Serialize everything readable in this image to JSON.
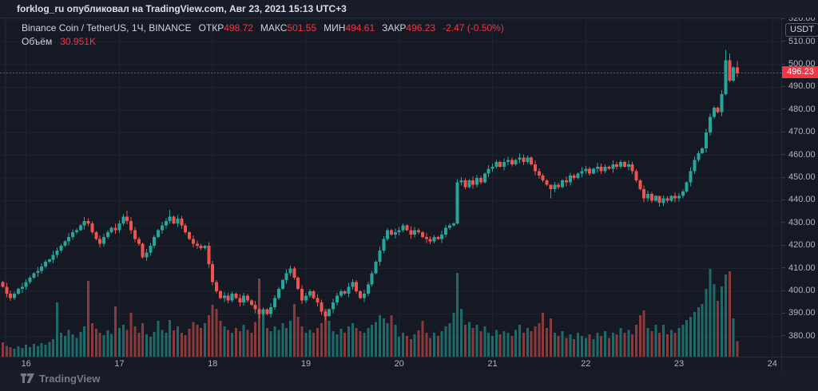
{
  "topbar": {
    "text": "forklog_ru опубликовал на TradingView.com, Авг 23, 2021 15:13 UTC+3"
  },
  "legend": {
    "symbol": "Binance Coin / TetherUS, 1Ч, BINANCE",
    "open_label": "ОТКР",
    "open": "498.72",
    "high_label": "МАКС",
    "high": "501.55",
    "low_label": "МИН",
    "low": "494.61",
    "close_label": "ЗАКР",
    "close": "496.23",
    "change": "-2.47 (-0.50%)",
    "volume_label": "Объём",
    "volume": "30.951K"
  },
  "axes": {
    "unit": "USDT",
    "last_price": "496.23",
    "price_ticks": [
      "520.00",
      "510.00",
      "500.00",
      "490.00",
      "480.00",
      "470.00",
      "460.00",
      "450.00",
      "440.00",
      "430.00",
      "420.00",
      "410.00",
      "400.00",
      "390.00",
      "380.00"
    ],
    "time_ticks": [
      "16",
      "17",
      "18",
      "19",
      "20",
      "21",
      "22",
      "23",
      "24"
    ]
  },
  "footer": {
    "brand": "TradingView"
  },
  "colors": {
    "up": "#26a69a",
    "down": "#ef5350",
    "accent_red": "#f23645",
    "grid": "#1e2330",
    "border": "#262b38",
    "axis_text": "#b2b5be",
    "pane_bg": "#151924"
  },
  "chart_data": {
    "type": "candlestick_with_volume",
    "title": "Binance Coin / TetherUS",
    "interval": "1Ч",
    "exchange": "BINANCE",
    "timezone": "UTC+3",
    "start_time": "Авг 15 2021 18:00",
    "step_hours": 1,
    "x_axis_day_labels": [
      "16",
      "17",
      "18",
      "19",
      "20",
      "21",
      "22",
      "23",
      "24"
    ],
    "y_axis": {
      "unit": "USDT",
      "visible_min": 375,
      "visible_max": 522,
      "tick_step": 10
    },
    "last_candle_ohlc": {
      "open": 498.72,
      "high": 501.55,
      "low": 494.61,
      "close": 496.23,
      "change": "-2.47 (-0.50%)",
      "volume": "30.951K"
    },
    "first_open": 404,
    "closes": [
      402,
      399,
      397,
      399,
      401,
      402,
      404,
      406,
      408,
      409,
      411,
      413,
      414,
      416,
      418,
      420,
      422,
      424,
      426,
      427,
      429,
      431,
      430,
      426,
      423,
      421,
      424,
      426,
      428,
      427,
      430,
      433,
      431,
      427,
      423,
      421,
      415,
      417,
      420,
      424,
      427,
      429,
      431,
      433,
      430,
      432,
      429,
      426,
      423,
      421,
      420,
      419,
      420,
      412,
      404,
      400,
      397,
      398,
      396,
      399,
      397,
      395,
      398,
      396,
      394,
      392,
      390,
      392,
      390,
      393,
      397,
      401,
      405,
      408,
      410,
      406,
      401,
      396,
      398,
      400,
      397,
      395,
      391,
      389,
      392,
      395,
      398,
      400,
      399,
      402,
      404,
      400,
      397,
      399,
      403,
      408,
      413,
      418,
      423,
      427,
      425,
      426,
      427,
      429,
      427,
      425,
      427,
      426,
      424,
      423,
      422,
      424,
      423,
      425,
      428,
      429,
      430,
      448,
      449,
      446,
      449,
      447,
      450,
      448,
      452,
      454,
      455,
      457,
      455,
      457,
      458,
      456,
      458,
      459,
      457,
      459,
      456,
      453,
      451,
      449,
      447,
      445,
      447,
      446,
      449,
      448,
      451,
      450,
      452,
      453,
      454,
      452,
      454,
      455,
      453,
      455,
      454,
      456,
      455,
      457,
      455,
      456,
      453,
      449,
      445,
      441,
      443,
      440,
      442,
      439,
      441,
      440,
      442,
      441,
      442,
      444,
      448,
      453,
      458,
      461,
      463,
      470,
      477,
      481,
      479,
      487,
      502,
      493,
      498.72,
      496.23
    ],
    "volumes_k": [
      29,
      22,
      19,
      16,
      21,
      18,
      24,
      19,
      26,
      22,
      27,
      24,
      30,
      35,
      109,
      48,
      42,
      54,
      45,
      38,
      50,
      61,
      152,
      67,
      56,
      48,
      43,
      53,
      46,
      101,
      58,
      64,
      54,
      88,
      61,
      48,
      67,
      45,
      40,
      50,
      72,
      54,
      48,
      74,
      53,
      61,
      48,
      43,
      56,
      70,
      64,
      58,
      67,
      83,
      104,
      96,
      72,
      61,
      54,
      48,
      58,
      51,
      64,
      54,
      48,
      70,
      157,
      88,
      58,
      51,
      61,
      54,
      67,
      58,
      72,
      106,
      80,
      61,
      48,
      54,
      48,
      58,
      67,
      96,
      72,
      51,
      45,
      56,
      48,
      61,
      67,
      58,
      51,
      48,
      58,
      64,
      70,
      83,
      77,
      67,
      83,
      64,
      40,
      48,
      42,
      35,
      45,
      53,
      72,
      48,
      38,
      48,
      42,
      51,
      61,
      67,
      88,
      168,
      96,
      64,
      70,
      58,
      64,
      51,
      61,
      48,
      42,
      54,
      45,
      51,
      48,
      42,
      54,
      64,
      48,
      58,
      51,
      61,
      67,
      88,
      58,
      77,
      48,
      42,
      51,
      38,
      45,
      35,
      48,
      42,
      38,
      45,
      35,
      48,
      42,
      51,
      38,
      48,
      45,
      58,
      48,
      54,
      45,
      64,
      83,
      93,
      58,
      51,
      64,
      48,
      64,
      45,
      54,
      48,
      58,
      64,
      74,
      80,
      90,
      99,
      106,
      136,
      176,
      146,
      112,
      141,
      165,
      171,
      77,
      30.951
    ],
    "wick_overrides": {
      "32": [
        435.5,
        429.5
      ],
      "43": [
        436,
        430
      ],
      "66": [
        392.5,
        388
      ],
      "83": [
        391.2,
        387.2
      ],
      "117": [
        449.5,
        429.5
      ],
      "133": [
        460.8,
        456.5
      ],
      "141": [
        446.5,
        441
      ],
      "169": [
        441,
        437.3
      ],
      "186": [
        506.5,
        486.5
      ],
      "187": [
        505,
        492.2
      ],
      "189": [
        501.55,
        494.61
      ]
    },
    "grid": true,
    "last_price_line": 496.23
  }
}
